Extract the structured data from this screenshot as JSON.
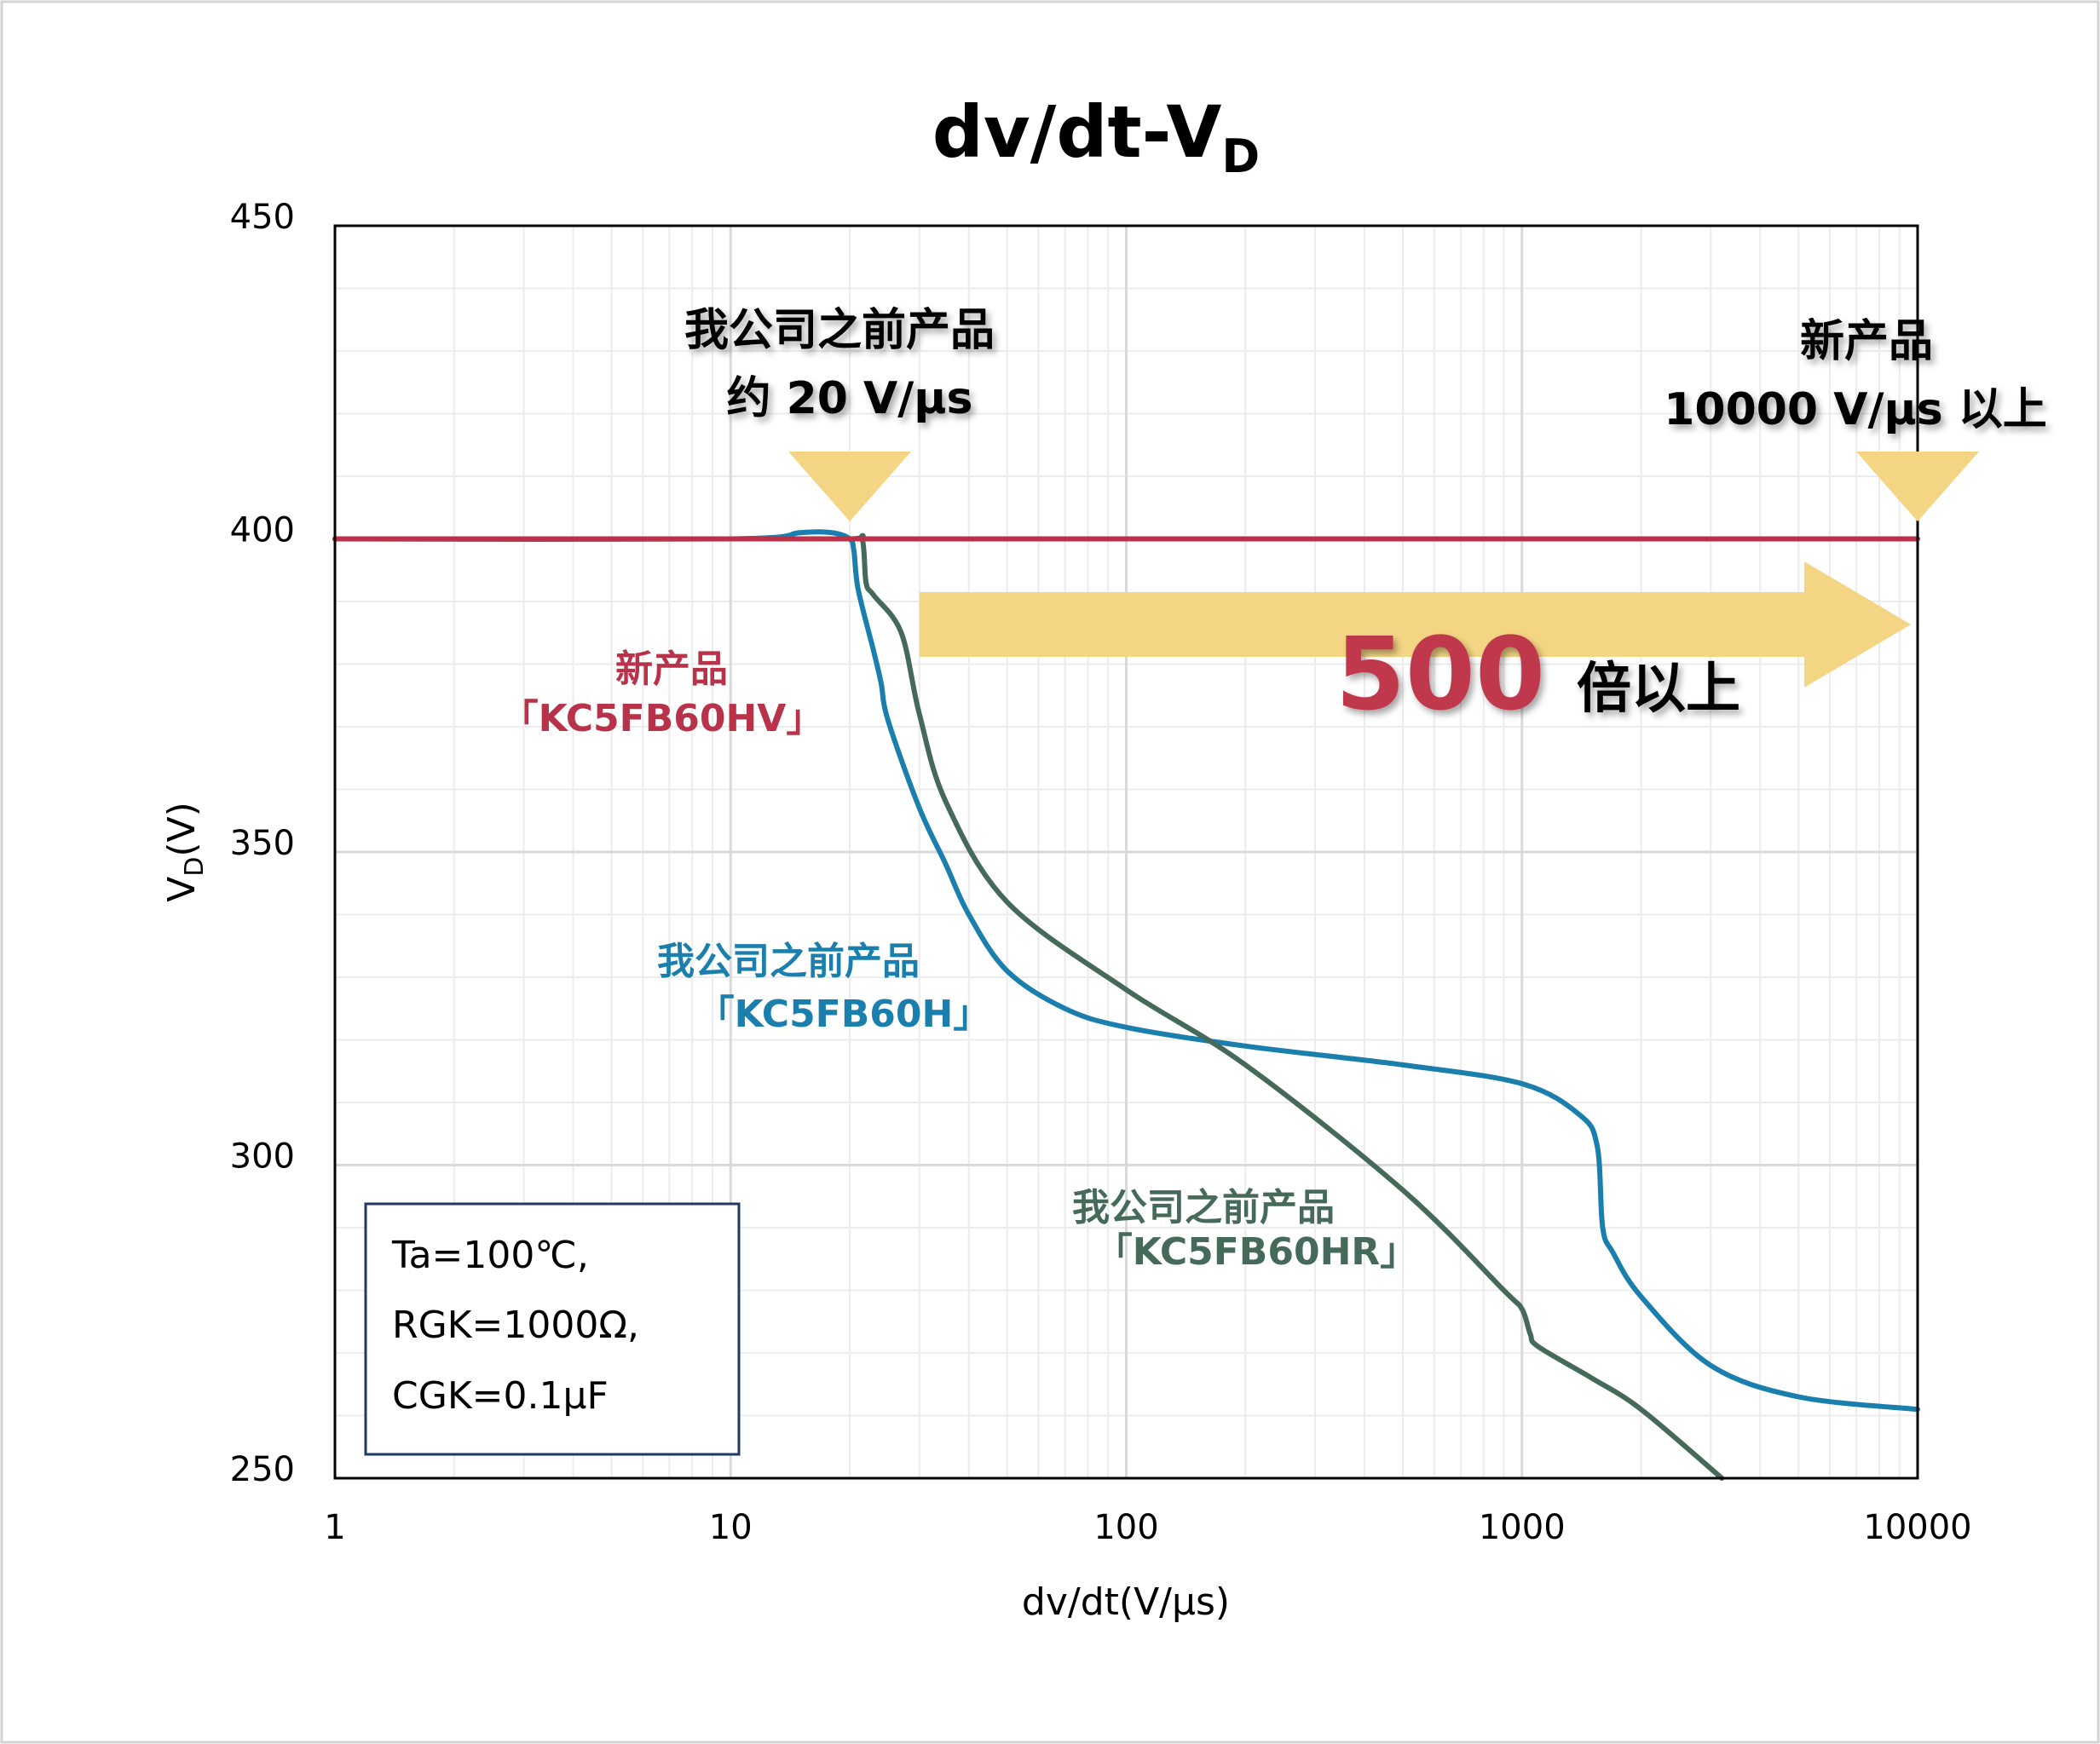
{
  "colors": {
    "new_product": "#b83349",
    "kc5fb60h": "#1b7fae",
    "kc5fb60hr": "#456a5a",
    "callout": "#f3d584",
    "frame": "#d4d4d4",
    "cond_box_border": "#1f3864"
  },
  "chart_data": {
    "type": "line",
    "title": "dv/dt-V",
    "title_subscript": "D",
    "xlabel": "dv/dt(V/μs)",
    "ylabel": "V",
    "ylabel_subscript": "D",
    "ylabel_unit": "(V)",
    "x_scale": "log",
    "xlim": [
      1,
      10000
    ],
    "ylim": [
      250,
      450
    ],
    "grid": true,
    "x_ticks": [
      {
        "value": 1,
        "label": "1"
      },
      {
        "value": 10,
        "label": "10"
      },
      {
        "value": 100,
        "label": "100"
      },
      {
        "value": 1000,
        "label": "1000"
      },
      {
        "value": 10000,
        "label": "10000"
      }
    ],
    "y_ticks": [
      {
        "value": 250,
        "label": "250"
      },
      {
        "value": 300,
        "label": "300"
      },
      {
        "value": 350,
        "label": "350"
      },
      {
        "value": 400,
        "label": "400"
      },
      {
        "value": 450,
        "label": "450"
      }
    ],
    "series": [
      {
        "name": "新产品「KC5FB60HV」",
        "label_line1": "新产品",
        "label_line2": "「KC5FB60HV」",
        "color_key": "new_product",
        "x": [
          1,
          10,
          100,
          1000,
          10000
        ],
        "y": [
          400,
          400,
          400,
          400,
          400
        ]
      },
      {
        "name": "我公司之前产品「KC5FB60H」",
        "label_line1": "我公司之前产品",
        "label_line2": "「KC5FB60H」",
        "color_key": "kc5fb60h",
        "x": [
          1,
          10,
          15,
          18,
          20,
          20.5,
          21,
          23,
          24,
          25,
          30,
          35,
          40,
          50,
          70,
          100,
          200,
          500,
          1000,
          1400,
          1550,
          1600,
          1700,
          2000,
          3000,
          5000,
          10000
        ],
        "y": [
          400,
          400,
          401,
          401,
          400,
          398,
          392,
          382,
          377,
          371,
          357,
          348,
          340,
          331,
          325,
          322,
          319,
          316,
          313,
          308,
          303,
          290,
          286,
          279,
          268,
          263,
          261
        ]
      },
      {
        "name": "我公司之前产品「KC5FB60HR」",
        "label_line1": "我公司之前产品",
        "label_line2": "「KC5FB60HR」",
        "color_key": "kc5fb60hr",
        "x": [
          1,
          10,
          20,
          21.5,
          22,
          23,
          27,
          30,
          35,
          50,
          100,
          200,
          500,
          900,
          1000,
          1050,
          1100,
          1500,
          2000,
          3200
        ],
        "y": [
          400,
          400,
          400,
          400,
          393,
          391,
          385,
          372,
          358,
          342,
          328,
          316,
          296,
          280,
          277,
          273,
          271,
          266,
          261,
          250
        ]
      }
    ],
    "annotations": {
      "old_limit": {
        "line1": "我公司之前产品",
        "line2": "约 20 V/μs",
        "x": 20
      },
      "new_limit": {
        "line1": "新产品",
        "line2": "10000 V/μs 以上",
        "x": 10000
      },
      "ratio": {
        "number": "500",
        "suffix": "倍以上"
      }
    },
    "conditions": [
      "Ta=100℃,",
      "RGK=1000Ω,",
      "CGK=0.1μF"
    ]
  }
}
